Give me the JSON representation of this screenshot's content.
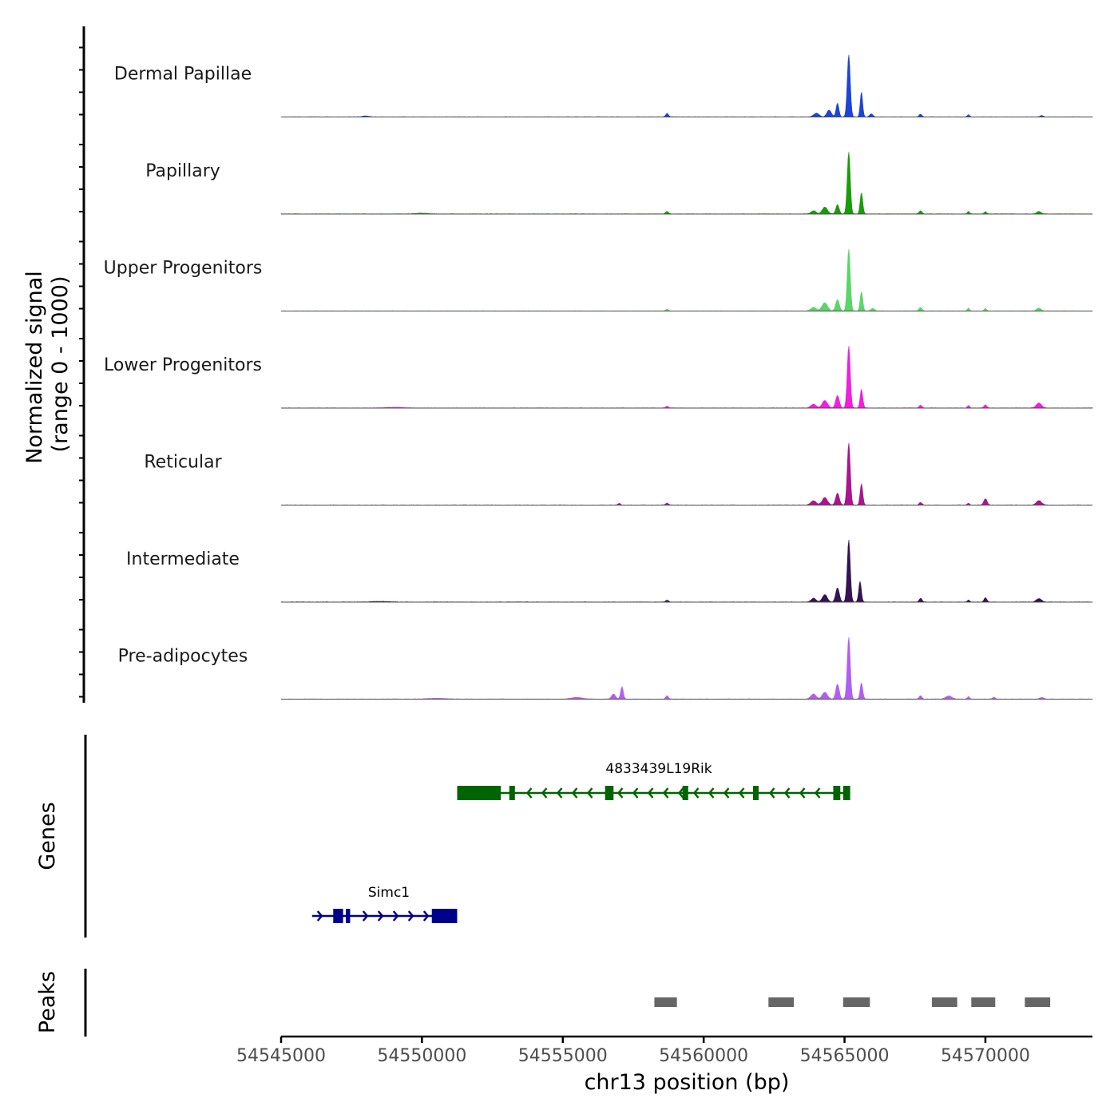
{
  "chart_data": {
    "type": "coverage",
    "title": "",
    "chromosome": "chr13",
    "xlabel": "chr13 position (bp)",
    "xlim": [
      54545000,
      54573800
    ],
    "xticks": [
      54545000,
      54550000,
      54555000,
      54560000,
      54565000,
      54570000
    ],
    "xtick_labels": [
      "54545000",
      "54550000",
      "54555000",
      "54560000",
      "54565000",
      "54570000"
    ],
    "ylabel_line1": "Normalized signal",
    "ylabel_line2": "(range 0 - 1000)",
    "ylim": [
      0,
      1000
    ],
    "genes_label": "Genes",
    "peaks_label": "Peaks",
    "peak_color": "#666666",
    "baseline_color": "#4d4d4d",
    "tracks": [
      {
        "name": "Dermal Papillae",
        "color": "#1c44d6",
        "peaks": [
          {
            "pos": 54565150,
            "height": 1000,
            "width": 150
          },
          {
            "pos": 54565600,
            "height": 400,
            "width": 120
          },
          {
            "pos": 54564750,
            "height": 220,
            "width": 140
          },
          {
            "pos": 54564450,
            "height": 110,
            "width": 220
          },
          {
            "pos": 54564000,
            "height": 60,
            "width": 260
          },
          {
            "pos": 54565950,
            "height": 50,
            "width": 160
          },
          {
            "pos": 54558700,
            "height": 55,
            "width": 140
          },
          {
            "pos": 54567700,
            "height": 45,
            "width": 130
          },
          {
            "pos": 54569400,
            "height": 35,
            "width": 110
          },
          {
            "pos": 54572000,
            "height": 25,
            "width": 140
          },
          {
            "pos": 54548000,
            "height": 15,
            "width": 300
          }
        ]
      },
      {
        "name": "Papillary",
        "color": "#1a9c0a",
        "peaks": [
          {
            "pos": 54565150,
            "height": 1000,
            "width": 150
          },
          {
            "pos": 54565600,
            "height": 340,
            "width": 130
          },
          {
            "pos": 54564750,
            "height": 150,
            "width": 160
          },
          {
            "pos": 54564300,
            "height": 110,
            "width": 260
          },
          {
            "pos": 54563900,
            "height": 50,
            "width": 240
          },
          {
            "pos": 54558700,
            "height": 40,
            "width": 140
          },
          {
            "pos": 54567700,
            "height": 50,
            "width": 150
          },
          {
            "pos": 54569400,
            "height": 40,
            "width": 110
          },
          {
            "pos": 54570000,
            "height": 35,
            "width": 120
          },
          {
            "pos": 54571900,
            "height": 40,
            "width": 200
          },
          {
            "pos": 54550000,
            "height": 12,
            "width": 600
          }
        ]
      },
      {
        "name": "Upper Progenitors",
        "color": "#5ad668",
        "peaks": [
          {
            "pos": 54565150,
            "height": 1000,
            "width": 150
          },
          {
            "pos": 54565600,
            "height": 310,
            "width": 130
          },
          {
            "pos": 54564750,
            "height": 180,
            "width": 180
          },
          {
            "pos": 54564300,
            "height": 130,
            "width": 280
          },
          {
            "pos": 54563900,
            "height": 60,
            "width": 260
          },
          {
            "pos": 54567700,
            "height": 60,
            "width": 150
          },
          {
            "pos": 54569400,
            "height": 45,
            "width": 110
          },
          {
            "pos": 54570000,
            "height": 40,
            "width": 120
          },
          {
            "pos": 54571900,
            "height": 45,
            "width": 220
          },
          {
            "pos": 54558700,
            "height": 30,
            "width": 140
          },
          {
            "pos": 54566000,
            "height": 40,
            "width": 180
          }
        ]
      },
      {
        "name": "Lower Progenitors",
        "color": "#f01fdc",
        "peaks": [
          {
            "pos": 54565150,
            "height": 1000,
            "width": 150
          },
          {
            "pos": 54565600,
            "height": 300,
            "width": 130
          },
          {
            "pos": 54564750,
            "height": 200,
            "width": 180
          },
          {
            "pos": 54564300,
            "height": 120,
            "width": 260
          },
          {
            "pos": 54563900,
            "height": 60,
            "width": 260
          },
          {
            "pos": 54567700,
            "height": 45,
            "width": 140
          },
          {
            "pos": 54569400,
            "height": 40,
            "width": 110
          },
          {
            "pos": 54570000,
            "height": 50,
            "width": 140
          },
          {
            "pos": 54571900,
            "height": 80,
            "width": 260
          },
          {
            "pos": 54558700,
            "height": 30,
            "width": 140
          },
          {
            "pos": 54549000,
            "height": 10,
            "width": 900
          }
        ]
      },
      {
        "name": "Reticular",
        "color": "#a9148f",
        "peaks": [
          {
            "pos": 54565150,
            "height": 1000,
            "width": 150
          },
          {
            "pos": 54565600,
            "height": 340,
            "width": 130
          },
          {
            "pos": 54564750,
            "height": 190,
            "width": 180
          },
          {
            "pos": 54564300,
            "height": 120,
            "width": 260
          },
          {
            "pos": 54563900,
            "height": 70,
            "width": 260
          },
          {
            "pos": 54567700,
            "height": 40,
            "width": 140
          },
          {
            "pos": 54570000,
            "height": 100,
            "width": 160
          },
          {
            "pos": 54571900,
            "height": 70,
            "width": 260
          },
          {
            "pos": 54558700,
            "height": 30,
            "width": 140
          },
          {
            "pos": 54557000,
            "height": 25,
            "width": 130
          },
          {
            "pos": 54569400,
            "height": 30,
            "width": 110
          }
        ]
      },
      {
        "name": "Intermediate",
        "color": "#351252",
        "peaks": [
          {
            "pos": 54565150,
            "height": 1000,
            "width": 150
          },
          {
            "pos": 54565550,
            "height": 330,
            "width": 130
          },
          {
            "pos": 54564750,
            "height": 230,
            "width": 180
          },
          {
            "pos": 54564300,
            "height": 120,
            "width": 240
          },
          {
            "pos": 54563900,
            "height": 60,
            "width": 240
          },
          {
            "pos": 54567700,
            "height": 60,
            "width": 140
          },
          {
            "pos": 54570000,
            "height": 70,
            "width": 140
          },
          {
            "pos": 54571900,
            "height": 55,
            "width": 260
          },
          {
            "pos": 54558700,
            "height": 30,
            "width": 140
          },
          {
            "pos": 54569400,
            "height": 30,
            "width": 110
          },
          {
            "pos": 54548500,
            "height": 10,
            "width": 900
          }
        ]
      },
      {
        "name": "Pre-adipocytes",
        "color": "#b25ef0",
        "peaks": [
          {
            "pos": 54565150,
            "height": 1000,
            "width": 150
          },
          {
            "pos": 54565600,
            "height": 260,
            "width": 130
          },
          {
            "pos": 54564750,
            "height": 240,
            "width": 170
          },
          {
            "pos": 54564300,
            "height": 110,
            "width": 250
          },
          {
            "pos": 54563900,
            "height": 80,
            "width": 260
          },
          {
            "pos": 54557100,
            "height": 200,
            "width": 130
          },
          {
            "pos": 54556800,
            "height": 80,
            "width": 200
          },
          {
            "pos": 54555500,
            "height": 25,
            "width": 600
          },
          {
            "pos": 54558700,
            "height": 50,
            "width": 140
          },
          {
            "pos": 54567700,
            "height": 55,
            "width": 140
          },
          {
            "pos": 54568700,
            "height": 50,
            "width": 300
          },
          {
            "pos": 54569400,
            "height": 40,
            "width": 110
          },
          {
            "pos": 54570300,
            "height": 30,
            "width": 140
          },
          {
            "pos": 54572000,
            "height": 25,
            "width": 200
          },
          {
            "pos": 54550500,
            "height": 12,
            "width": 900
          }
        ]
      }
    ],
    "genes": [
      {
        "name": "4833439L19Rik",
        "strand": "-",
        "color": "#006400",
        "start": 54551250,
        "end": 54565200,
        "exons": [
          [
            54551250,
            54552800
          ],
          [
            54553100,
            54553300
          ],
          [
            54556500,
            54556800
          ],
          [
            54559250,
            54559450
          ],
          [
            54561750,
            54561950
          ],
          [
            54564600,
            54564850
          ],
          [
            54564950,
            54565200
          ]
        ]
      },
      {
        "name": "Simc1",
        "strand": "+",
        "color": "#00008b",
        "start": 54546100,
        "end": 54551250,
        "exons": [
          [
            54546850,
            54547200
          ],
          [
            54547300,
            54547450
          ],
          [
            54550350,
            54551250
          ]
        ]
      }
    ],
    "peak_regions": [
      [
        54558250,
        54559050
      ],
      [
        54562300,
        54563200
      ],
      [
        54564950,
        54565900
      ],
      [
        54568100,
        54569000
      ],
      [
        54569500,
        54570350
      ],
      [
        54571400,
        54572300
      ]
    ]
  }
}
